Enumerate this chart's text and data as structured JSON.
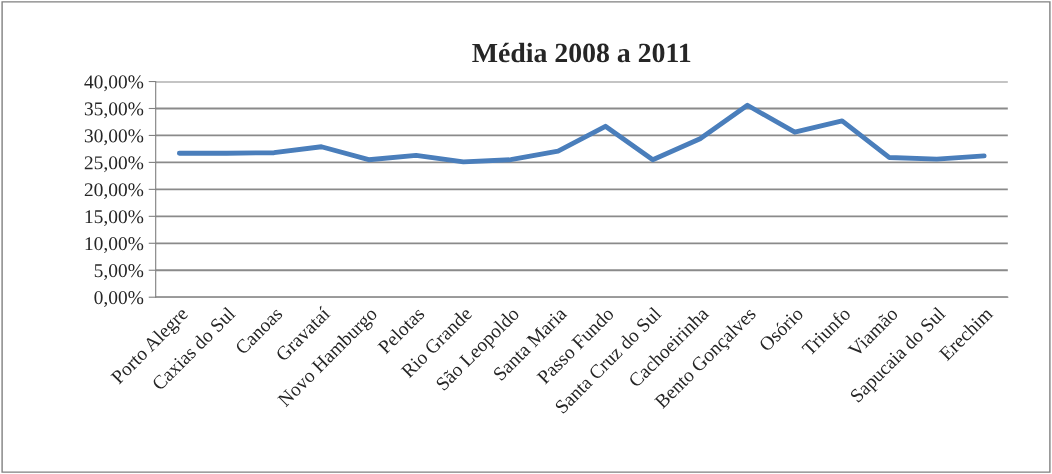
{
  "chart_data": {
    "type": "line",
    "title": "Média 2008 a 2011",
    "categories": [
      "Porto Alegre",
      "Caxias do Sul",
      "Canoas",
      "Gravataí",
      "Novo Hamburgo",
      "Pelotas",
      "Rio Grande",
      "São Leopoldo",
      "Santa Maria",
      "Passo Fundo",
      "Santa Cruz do Sul",
      "Cachoeirinha",
      "Bento Gonçalves",
      "Osório",
      "Triunfo",
      "Viamão",
      "Sapucaia do Sul",
      "Erechim"
    ],
    "series": [
      {
        "color": "#4a7ebb",
        "values": [
          26.7,
          26.7,
          26.8,
          27.9,
          25.5,
          26.3,
          25.1,
          25.5,
          27.1,
          31.7,
          25.5,
          29.4,
          35.6,
          30.6,
          32.7,
          25.9,
          25.6,
          26.2
        ]
      }
    ],
    "ylim": [
      0,
      40
    ],
    "yticks": [
      {
        "value": 0,
        "label": "0,00%"
      },
      {
        "value": 5,
        "label": "5,00%"
      },
      {
        "value": 10,
        "label": "10,00%"
      },
      {
        "value": 15,
        "label": "15,00%"
      },
      {
        "value": 20,
        "label": "20,00%"
      },
      {
        "value": 25,
        "label": "25,00%"
      },
      {
        "value": 30,
        "label": "30,00%"
      },
      {
        "value": 35,
        "label": "35,00%"
      },
      {
        "value": 40,
        "label": "40,00%"
      }
    ],
    "grid": "y",
    "marker": "none",
    "line_style": "solid"
  }
}
